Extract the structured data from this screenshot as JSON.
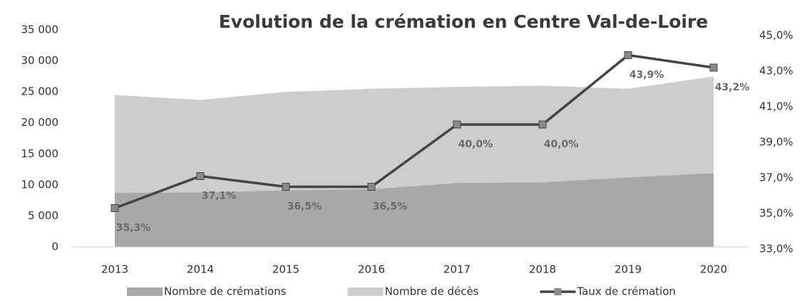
{
  "chart_data": {
    "type": "combo",
    "title": "Evolution de la crémation en Centre Val-de-Loire",
    "categories": [
      "2013",
      "2014",
      "2015",
      "2016",
      "2017",
      "2018",
      "2019",
      "2020"
    ],
    "series": [
      {
        "name": "Nombre de crémations",
        "type": "area",
        "color": "#a8a8a8",
        "values": [
          8700,
          8800,
          9100,
          9300,
          10300,
          10400,
          11200,
          11900
        ]
      },
      {
        "name": "Nombre de décès",
        "type": "area",
        "color": "#cdcdcd",
        "values": [
          24500,
          23700,
          25000,
          25500,
          25800,
          26000,
          25500,
          27500
        ]
      },
      {
        "name": "Taux de crémation",
        "type": "line",
        "axis": "y2",
        "color": "#444444",
        "marker_color": "#8a8a8a",
        "values": [
          35.3,
          37.1,
          36.5,
          36.5,
          40.0,
          40.0,
          43.9,
          43.2
        ],
        "value_labels": [
          "35,3%",
          "37,1%",
          "36,5%",
          "36,5%",
          "40,0%",
          "40,0%",
          "43,9%",
          "43,2%"
        ]
      }
    ],
    "ylim": [
      0,
      35000
    ],
    "yticks": [
      {
        "value": 0,
        "label": "0"
      },
      {
        "value": 5000,
        "label": "5 000"
      },
      {
        "value": 10000,
        "label": "10 000"
      },
      {
        "value": 15000,
        "label": "15 000"
      },
      {
        "value": 20000,
        "label": "20 000"
      },
      {
        "value": 25000,
        "label": "25 000"
      },
      {
        "value": 30000,
        "label": "30 000"
      },
      {
        "value": 35000,
        "label": "35 000"
      }
    ],
    "y2lim": [
      33,
      45
    ],
    "y2ticks": [
      {
        "value": 33,
        "label": "33,0%"
      },
      {
        "value": 35,
        "label": "35,0%"
      },
      {
        "value": 37,
        "label": "37,0%"
      },
      {
        "value": 39,
        "label": "39,0%"
      },
      {
        "value": 41,
        "label": "41,0%"
      },
      {
        "value": 43,
        "label": "43,0%"
      },
      {
        "value": 45,
        "label": "45,0%"
      }
    ],
    "legend": "bottom"
  }
}
